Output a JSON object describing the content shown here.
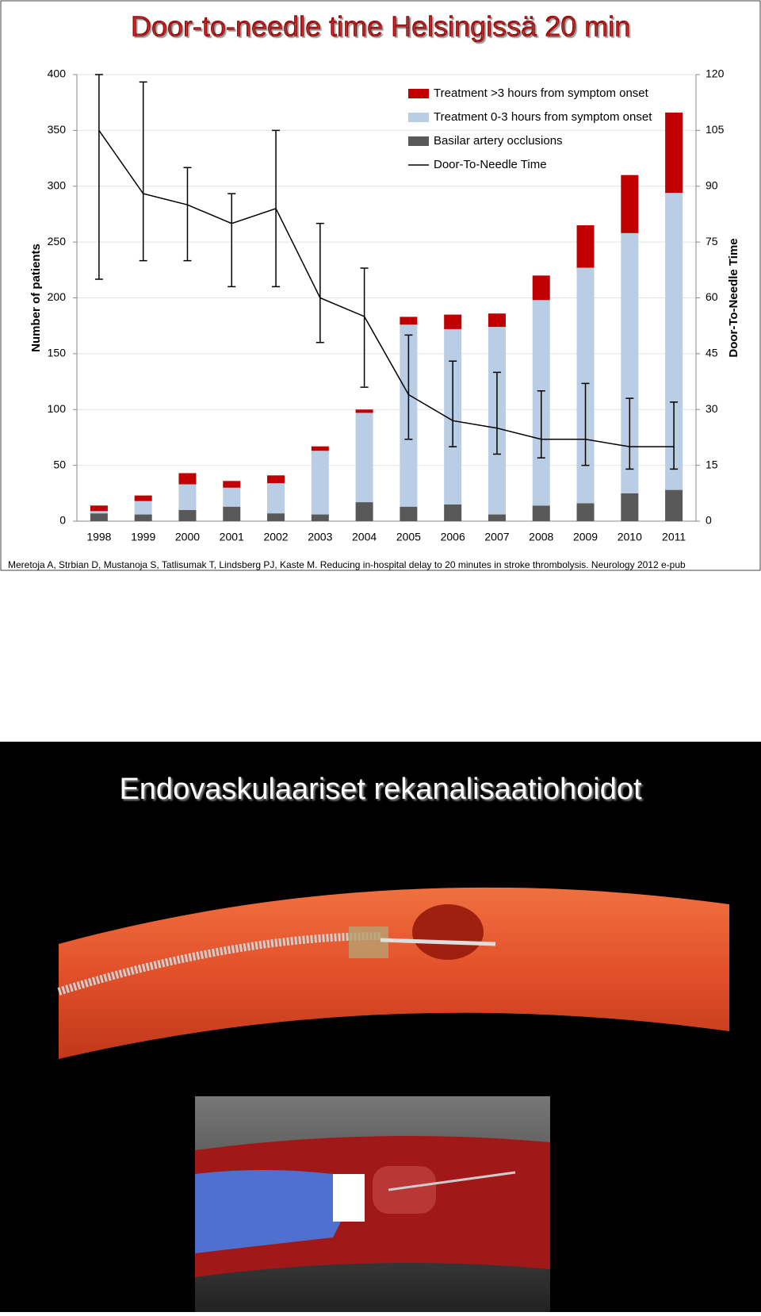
{
  "chart_data": {
    "type": "bar",
    "stacked": true,
    "title": "Door-to-needle time Helsingissä 20 min",
    "ylabel": "Number of patients",
    "y2label": "Door-To-Needle Time",
    "categories": [
      "1998",
      "1999",
      "2000",
      "2001",
      "2002",
      "2003",
      "2004",
      "2005",
      "2006",
      "2007",
      "2008",
      "2009",
      "2010",
      "2011"
    ],
    "series": [
      {
        "name": "Basilar artery occlusions",
        "color": "#595959",
        "values": [
          7,
          6,
          10,
          13,
          7,
          6,
          17,
          13,
          15,
          6,
          14,
          16,
          25,
          28
        ]
      },
      {
        "name": "Treatment 0-3 hours from symptom onset",
        "color": "#b9cde5",
        "values": [
          2,
          12,
          23,
          17,
          27,
          57,
          80,
          163,
          157,
          168,
          184,
          211,
          233,
          266
        ]
      },
      {
        "name": "Treatment >3 hours from symptom onset",
        "color": "#c00000",
        "values": [
          5,
          5,
          10,
          6,
          7,
          4,
          3,
          7,
          13,
          12,
          22,
          38,
          52,
          72
        ]
      },
      {
        "name": "Door-To-Needle Time",
        "color": "#000000",
        "type": "line",
        "axis": "y2",
        "values": [
          105,
          88,
          85,
          80,
          84,
          60,
          55,
          34,
          27,
          25,
          22,
          22,
          20,
          20
        ],
        "error_upper": [
          120,
          118,
          95,
          88,
          105,
          80,
          68,
          50,
          43,
          40,
          35,
          37,
          33,
          32
        ],
        "error_lower": [
          65,
          70,
          70,
          63,
          63,
          48,
          36,
          22,
          20,
          18,
          17,
          15,
          14,
          14
        ]
      }
    ],
    "legend_order": [
      2,
      1,
      0,
      3
    ],
    "ylim": [
      0,
      400
    ],
    "yticks": [
      0,
      50,
      100,
      150,
      200,
      250,
      300,
      350,
      400
    ],
    "y2lim": [
      0,
      120
    ],
    "y2ticks": [
      0,
      15,
      30,
      45,
      60,
      75,
      90,
      105,
      120
    ],
    "grid": true
  },
  "citation": "Meretoja A, Strbian D, Mustanoja S, Tatlisumak T, Lindsberg PJ, Kaste M. Reducing in-hospital delay to 20 minutes in stroke thrombolysis. Neurology 2012 e-pub",
  "slide2": {
    "title": "Endovaskulaariset rekanalisaatiohoidot"
  }
}
